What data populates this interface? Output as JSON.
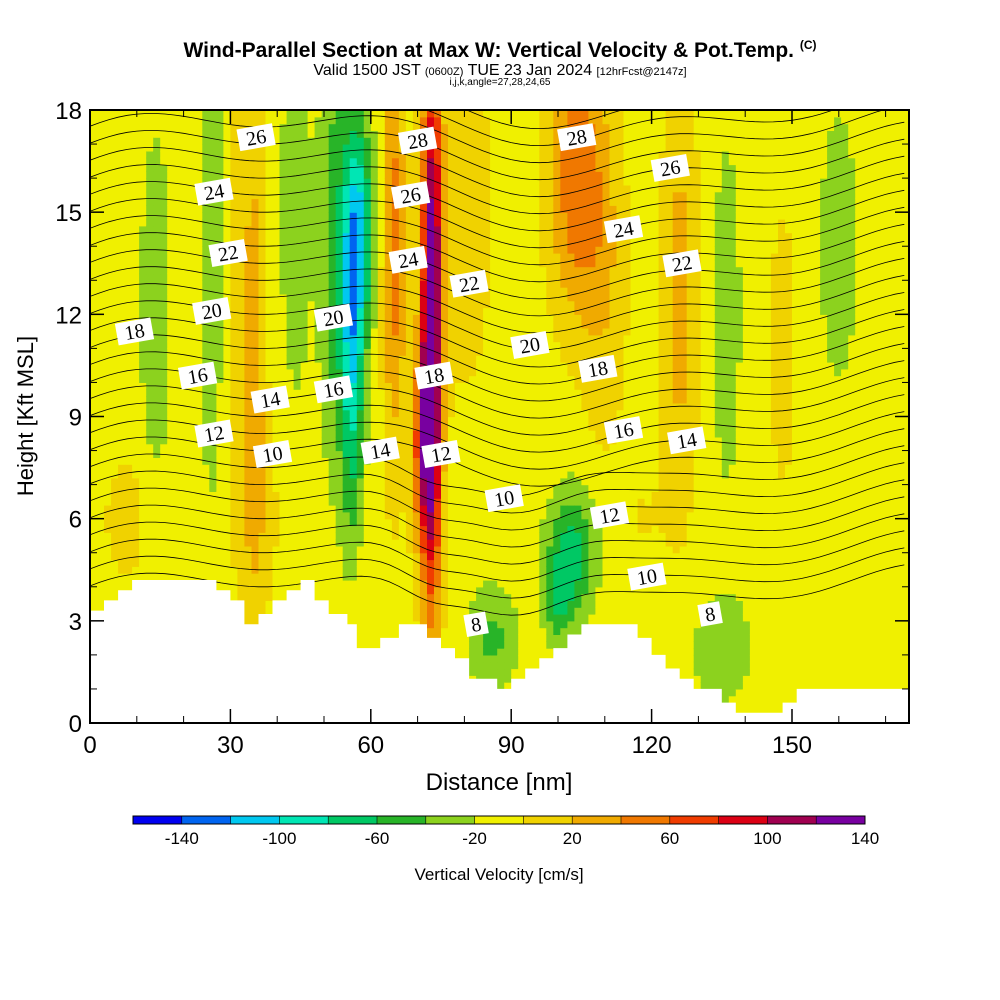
{
  "header": {
    "title": "Wind-Parallel Section at Max W: Vertical Velocity & Pot.Temp.",
    "copyright": "(C)",
    "valid": "Valid 1500 JST",
    "valid_utc": "(0600Z)",
    "valid_date": "TUE 23 Jan 2024",
    "forecast": "[12hrFcst@2147z]",
    "indices": "i,j,k,angle=27,28,24,65"
  },
  "chart_data": {
    "type": "heatmap",
    "xlabel": "Distance [nm]",
    "ylabel": "Height [Kft MSL]",
    "xlim": [
      0,
      175
    ],
    "ylim": [
      0,
      18
    ],
    "x_ticks": [
      0,
      30,
      60,
      90,
      120,
      150
    ],
    "y_ticks": [
      0,
      3,
      6,
      9,
      12,
      15,
      18
    ],
    "terrain": [
      [
        0,
        3.3
      ],
      [
        3,
        3.3
      ],
      [
        3,
        3.6
      ],
      [
        6,
        3.6
      ],
      [
        6,
        3.9
      ],
      [
        9,
        3.9
      ],
      [
        9,
        4.2
      ],
      [
        27,
        4.2
      ],
      [
        27,
        3.9
      ],
      [
        30,
        3.9
      ],
      [
        30,
        3.6
      ],
      [
        33,
        3.6
      ],
      [
        33,
        2.9
      ],
      [
        36,
        2.9
      ],
      [
        36,
        3.2
      ],
      [
        39,
        3.2
      ],
      [
        39,
        3.6
      ],
      [
        42,
        3.6
      ],
      [
        42,
        3.9
      ],
      [
        45,
        3.9
      ],
      [
        45,
        4.2
      ],
      [
        48,
        4.2
      ],
      [
        48,
        3.6
      ],
      [
        51,
        3.6
      ],
      [
        51,
        3.2
      ],
      [
        55,
        3.2
      ],
      [
        55,
        2.9
      ],
      [
        57,
        2.9
      ],
      [
        57,
        2.2
      ],
      [
        62,
        2.2
      ],
      [
        62,
        2.5
      ],
      [
        66,
        2.5
      ],
      [
        66,
        2.9
      ],
      [
        72,
        2.9
      ],
      [
        72,
        2.5
      ],
      [
        75,
        2.5
      ],
      [
        75,
        2.2
      ],
      [
        78,
        2.2
      ],
      [
        78,
        1.9
      ],
      [
        81,
        1.9
      ],
      [
        81,
        1.3
      ],
      [
        87,
        1.3
      ],
      [
        87,
        1.0
      ],
      [
        90,
        1.0
      ],
      [
        90,
        1.3
      ],
      [
        93,
        1.3
      ],
      [
        93,
        1.6
      ],
      [
        96,
        1.6
      ],
      [
        96,
        1.9
      ],
      [
        99,
        1.9
      ],
      [
        99,
        2.2
      ],
      [
        102,
        2.2
      ],
      [
        102,
        2.6
      ],
      [
        105,
        2.6
      ],
      [
        105,
        2.9
      ],
      [
        117,
        2.9
      ],
      [
        117,
        2.5
      ],
      [
        120,
        2.5
      ],
      [
        120,
        2.0
      ],
      [
        123,
        2.0
      ],
      [
        123,
        1.6
      ],
      [
        126,
        1.6
      ],
      [
        126,
        1.3
      ],
      [
        129,
        1.3
      ],
      [
        129,
        1.0
      ],
      [
        135,
        1.0
      ],
      [
        135,
        0.6
      ],
      [
        138,
        0.6
      ],
      [
        138,
        0.3
      ],
      [
        148,
        0.3
      ],
      [
        148,
        0.6
      ],
      [
        151,
        0.6
      ],
      [
        151,
        1.0
      ],
      [
        175,
        1.0
      ]
    ],
    "colorbar": {
      "label": "Vertical Velocity [cm/s]",
      "tick_labels": [
        "-140",
        "-100",
        "-60",
        "-20",
        "20",
        "60",
        "100",
        "140"
      ],
      "levels": [
        -160,
        -140,
        -120,
        -100,
        -80,
        -60,
        -40,
        -20,
        0,
        20,
        40,
        60,
        80,
        100,
        120,
        140,
        160
      ],
      "colors": [
        "#0000f0",
        "#0064f0",
        "#00c8f0",
        "#00e6b4",
        "#00c864",
        "#28b428",
        "#8cd21e",
        "#f0f000",
        "#f0d200",
        "#f0aa00",
        "#f07800",
        "#f03c00",
        "#dc0014",
        "#a00050",
        "#7800a0"
      ]
    },
    "w_field": {
      "base_value": -10,
      "cells": [
        {
          "x": 35,
          "z": 11,
          "sx": 2.5,
          "sz": 7,
          "w": 45
        },
        {
          "x": 31,
          "z": 13,
          "sx": 2,
          "sz": 6,
          "w": 25
        },
        {
          "x": 26,
          "z": 14,
          "sx": 2.5,
          "sz": 8,
          "w": -25
        },
        {
          "x": 14,
          "z": 12,
          "sx": 3,
          "sz": 5,
          "w": -30
        },
        {
          "x": 44,
          "z": 15,
          "sx": 3,
          "sz": 5,
          "w": -30
        },
        {
          "x": 52,
          "z": 14,
          "sx": 3,
          "sz": 6,
          "w": -40
        },
        {
          "x": 56,
          "z": 11.5,
          "sx": 2.5,
          "sz": 5.5,
          "w": -90
        },
        {
          "x": 58,
          "z": 14.5,
          "sx": 3,
          "sz": 3,
          "w": -65
        },
        {
          "x": 65,
          "z": 14,
          "sx": 2.5,
          "sz": 6,
          "w": 60
        },
        {
          "x": 73,
          "z": 11.5,
          "sx": 2.2,
          "sz": 8,
          "w": 160
        },
        {
          "x": 71,
          "z": 8,
          "sx": 2.5,
          "sz": 3,
          "w": 70
        },
        {
          "x": 80,
          "z": 15,
          "sx": 7,
          "sz": 6,
          "w": 20
        },
        {
          "x": 104,
          "z": 16,
          "sx": 6,
          "sz": 4,
          "w": 65
        },
        {
          "x": 110,
          "z": 13,
          "sx": 5,
          "sz": 5,
          "w": 25
        },
        {
          "x": 126,
          "z": 12.5,
          "sx": 4,
          "sz": 6,
          "w": 40
        },
        {
          "x": 148,
          "z": 11,
          "sx": 4,
          "sz": 6,
          "w": 15
        },
        {
          "x": 136,
          "z": 12,
          "sx": 3,
          "sz": 5,
          "w": -25
        },
        {
          "x": 160,
          "z": 14,
          "sx": 4,
          "sz": 4,
          "w": -25
        },
        {
          "x": 103,
          "z": 5,
          "sx": 5,
          "sz": 1.8,
          "w": -60
        },
        {
          "x": 100,
          "z": 3.6,
          "sx": 3,
          "sz": 1.2,
          "w": -40
        },
        {
          "x": 86,
          "z": 2.5,
          "sx": 5,
          "sz": 1.5,
          "w": -35
        },
        {
          "x": 135,
          "z": 2.2,
          "sx": 6,
          "sz": 1.5,
          "w": -30
        },
        {
          "x": 8,
          "z": 6,
          "sx": 7,
          "sz": 2.5,
          "w": 15
        },
        {
          "x": 36,
          "z": 6,
          "sx": 6,
          "sz": 3,
          "w": 15
        },
        {
          "x": 60,
          "z": 4,
          "sx": 5,
          "sz": 2,
          "w": 10
        },
        {
          "x": 118,
          "z": 6,
          "sx": 6,
          "sz": 2,
          "w": 10
        },
        {
          "x": 155,
          "z": 4,
          "sx": 8,
          "sz": 2,
          "w": 0
        }
      ]
    },
    "theta_labels": [
      {
        "text": "26",
        "x": 35.5,
        "z": 17.2
      },
      {
        "text": "24",
        "x": 26.5,
        "z": 15.6
      },
      {
        "text": "22",
        "x": 29.5,
        "z": 13.8
      },
      {
        "text": "20",
        "x": 26,
        "z": 12.1
      },
      {
        "text": "18",
        "x": 9.5,
        "z": 11.5
      },
      {
        "text": "16",
        "x": 23,
        "z": 10.2
      },
      {
        "text": "14",
        "x": 38.5,
        "z": 9.5
      },
      {
        "text": "12",
        "x": 26.5,
        "z": 8.5
      },
      {
        "text": "10",
        "x": 39,
        "z": 7.9
      },
      {
        "text": "28",
        "x": 70,
        "z": 17.1
      },
      {
        "text": "26",
        "x": 68.5,
        "z": 15.5
      },
      {
        "text": "24",
        "x": 68,
        "z": 13.6
      },
      {
        "text": "22",
        "x": 81,
        "z": 12.9
      },
      {
        "text": "20",
        "x": 52,
        "z": 11.9
      },
      {
        "text": "16",
        "x": 52,
        "z": 9.8
      },
      {
        "text": "14",
        "x": 62,
        "z": 8.0
      },
      {
        "text": "18",
        "x": 73.5,
        "z": 10.2
      },
      {
        "text": "12",
        "x": 75,
        "z": 7.9
      },
      {
        "text": "10",
        "x": 88.5,
        "z": 6.6
      },
      {
        "text": "8",
        "x": 82.5,
        "z": 2.9
      },
      {
        "text": "28",
        "x": 104,
        "z": 17.2
      },
      {
        "text": "26",
        "x": 124,
        "z": 16.3
      },
      {
        "text": "24",
        "x": 114,
        "z": 14.5
      },
      {
        "text": "22",
        "x": 126.5,
        "z": 13.5
      },
      {
        "text": "20",
        "x": 94,
        "z": 11.1
      },
      {
        "text": "18",
        "x": 108.5,
        "z": 10.4
      },
      {
        "text": "16",
        "x": 114,
        "z": 8.6
      },
      {
        "text": "14",
        "x": 127.5,
        "z": 8.3
      },
      {
        "text": "12",
        "x": 111,
        "z": 6.1
      },
      {
        "text": "10",
        "x": 119,
        "z": 4.3
      },
      {
        "text": "8",
        "x": 132.5,
        "z": 3.2
      }
    ]
  }
}
